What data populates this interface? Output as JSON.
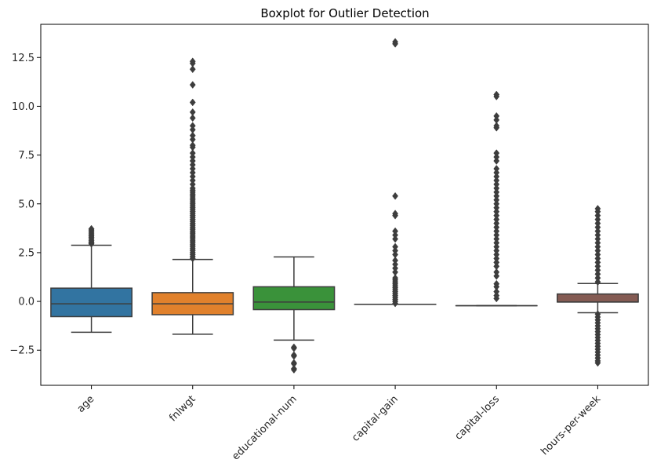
{
  "chart_data": {
    "type": "box",
    "title": "Boxplot for Outlier Detection",
    "xlabel": "",
    "ylabel": "",
    "ylim": [
      -4.3,
      14.2
    ],
    "yticks": [
      -2.5,
      0.0,
      2.5,
      5.0,
      7.5,
      10.0,
      12.5
    ],
    "ytick_labels": [
      "−2.5",
      "0.0",
      "2.5",
      "5.0",
      "7.5",
      "10.0",
      "12.5"
    ],
    "grid": false,
    "categories": [
      "age",
      "fnlwgt",
      "educational-num",
      "capital-gain",
      "capital-loss",
      "hours-per-week"
    ],
    "boxes": [
      {
        "name": "age",
        "color": "#3274a1",
        "q1": -0.78,
        "median": -0.12,
        "q3": 0.68,
        "whisker_low": -1.58,
        "whisker_high": 2.88,
        "outliers": [
          2.95,
          3.0,
          3.05,
          3.12,
          3.2,
          3.28,
          3.35,
          3.42,
          3.5,
          3.58,
          3.66,
          3.72
        ]
      },
      {
        "name": "fnlwgt",
        "color": "#e1812c",
        "q1": -0.68,
        "median": -0.12,
        "q3": 0.45,
        "whisker_low": -1.68,
        "whisker_high": 2.15,
        "outliers": [
          2.2,
          2.3,
          2.4,
          2.5,
          2.6,
          2.7,
          2.8,
          2.9,
          3.0,
          3.1,
          3.2,
          3.3,
          3.4,
          3.5,
          3.6,
          3.7,
          3.8,
          3.9,
          4.0,
          4.1,
          4.2,
          4.3,
          4.4,
          4.5,
          4.6,
          4.7,
          4.8,
          4.9,
          5.0,
          5.1,
          5.2,
          5.3,
          5.4,
          5.5,
          5.6,
          5.7,
          5.8,
          6.0,
          6.2,
          6.4,
          6.6,
          6.8,
          7.0,
          7.2,
          7.4,
          7.6,
          7.9,
          8.0,
          8.3,
          8.5,
          8.8,
          9.0,
          9.4,
          9.7,
          10.2,
          11.1,
          11.9,
          12.2,
          12.3
        ]
      },
      {
        "name": "educational-num",
        "color": "#3a923a",
        "q1": -0.42,
        "median": -0.03,
        "q3": 0.75,
        "whisker_low": -1.98,
        "whisker_high": 2.28,
        "outliers": [
          -2.35,
          -2.4,
          -2.75,
          -2.8,
          -3.15,
          -3.2,
          -3.45,
          -3.5
        ]
      },
      {
        "name": "capital-gain",
        "color": "#c03d3e",
        "q1": -0.15,
        "median": -0.15,
        "q3": -0.15,
        "whisker_low": -0.15,
        "whisker_high": -0.15,
        "outliers": [
          -0.1,
          0.0,
          0.1,
          0.2,
          0.3,
          0.4,
          0.5,
          0.6,
          0.7,
          0.8,
          0.9,
          1.0,
          1.1,
          1.2,
          1.5,
          1.7,
          1.9,
          2.1,
          2.4,
          2.6,
          2.8,
          3.2,
          3.4,
          3.6,
          4.4,
          4.5,
          5.4,
          13.2,
          13.3
        ]
      },
      {
        "name": "capital-loss",
        "color": "#9372b2",
        "q1": -0.22,
        "median": -0.22,
        "q3": -0.22,
        "whisker_low": -0.22,
        "whisker_high": -0.22,
        "outliers": [
          0.15,
          0.3,
          0.5,
          0.75,
          0.9,
          1.3,
          1.5,
          1.8,
          2.0,
          2.2,
          2.4,
          2.6,
          2.8,
          3.0,
          3.2,
          3.4,
          3.6,
          3.8,
          4.0,
          4.2,
          4.4,
          4.6,
          4.8,
          5.0,
          5.2,
          5.4,
          5.6,
          5.8,
          6.0,
          6.2,
          6.4,
          6.6,
          6.8,
          7.2,
          7.4,
          7.6,
          8.9,
          9.0,
          9.3,
          9.5,
          10.5,
          10.6
        ]
      },
      {
        "name": "hours-per-week",
        "color": "#845b53",
        "q1": -0.03,
        "median": -0.03,
        "q3": 0.38,
        "whisker_low": -0.58,
        "whisker_high": 0.92,
        "outliers": [
          1.0,
          1.2,
          1.4,
          1.6,
          1.8,
          2.0,
          2.2,
          2.4,
          2.6,
          2.8,
          3.0,
          3.2,
          3.4,
          3.6,
          3.8,
          4.0,
          4.2,
          4.4,
          4.6,
          4.75,
          -0.65,
          -0.8,
          -0.95,
          -1.1,
          -1.25,
          -1.4,
          -1.55,
          -1.7,
          -1.85,
          -2.0,
          -2.15,
          -2.3,
          -2.45,
          -2.6,
          -2.75,
          -2.9,
          -3.05,
          -3.15
        ]
      }
    ]
  }
}
